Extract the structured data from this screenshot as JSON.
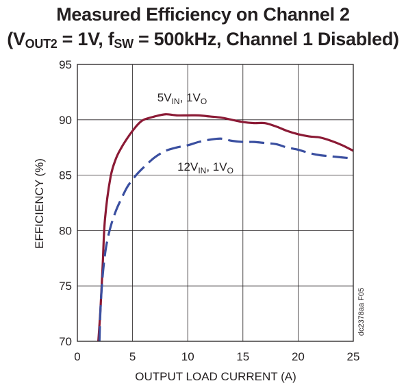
{
  "title": {
    "line1": "Measured Efficiency on Channel 2",
    "l2_open": "(V",
    "l2_vsub": "OUT2",
    "l2_mid": " = 1V, f",
    "l2_fsub": "SW",
    "l2_close": " = 500kHz, Channel 1 Disabled)"
  },
  "figure_code": "dc2378aa F05",
  "colors": {
    "series_5v": "#8b1a35",
    "series_12v": "#3a4fa0",
    "axis": "#231f20",
    "grid": "#231f20"
  },
  "chart_data": {
    "type": "line",
    "xlabel": "OUTPUT LOAD CURRENT (A)",
    "ylabel": "EFFICIENCY (%)",
    "xlim": [
      0,
      25
    ],
    "ylim": [
      70,
      95
    ],
    "xticks": [
      0,
      5,
      10,
      15,
      20,
      25
    ],
    "yticks": [
      70,
      75,
      80,
      85,
      90,
      95
    ],
    "grid": true,
    "series": [
      {
        "label_main": "5V",
        "label_sub1": "IN",
        "label_mid": ", 1V",
        "label_sub2": "O",
        "style": "solid",
        "x": [
          1.9,
          2.1,
          2.3,
          2.5,
          3.0,
          3.5,
          4.0,
          4.5,
          5.0,
          5.5,
          6.0,
          7.0,
          8.0,
          9.0,
          10.0,
          11.0,
          12.0,
          13.0,
          14.0,
          15.0,
          16.0,
          17.0,
          18.0,
          19.0,
          20.0,
          21.0,
          22.0,
          23.0,
          24.0,
          25.0
        ],
        "y": [
          70.0,
          73.0,
          77.0,
          81.0,
          84.8,
          86.5,
          87.5,
          88.3,
          89.0,
          89.6,
          90.0,
          90.3,
          90.5,
          90.4,
          90.4,
          90.4,
          90.3,
          90.2,
          90.0,
          89.8,
          89.7,
          89.7,
          89.4,
          89.0,
          88.7,
          88.5,
          88.4,
          88.1,
          87.7,
          87.2
        ]
      },
      {
        "label_main": "12V",
        "label_sub1": "IN",
        "label_mid": ", 1V",
        "label_sub2": "O",
        "style": "dashed",
        "x": [
          2.0,
          2.1,
          2.3,
          2.6,
          3.0,
          3.5,
          4.0,
          4.5,
          5.0,
          5.5,
          6.0,
          7.0,
          8.0,
          9.0,
          10.0,
          11.0,
          12.0,
          13.0,
          14.0,
          15.0,
          16.0,
          17.0,
          18.0,
          19.0,
          20.0,
          21.0,
          22.0,
          23.0,
          24.0,
          25.0
        ],
        "y": [
          70.0,
          73.0,
          76.0,
          78.5,
          80.3,
          81.8,
          82.9,
          83.9,
          84.6,
          85.2,
          85.7,
          86.6,
          87.2,
          87.5,
          87.7,
          88.0,
          88.2,
          88.3,
          88.1,
          88.0,
          88.0,
          87.9,
          87.8,
          87.5,
          87.3,
          87.0,
          86.8,
          86.7,
          86.6,
          86.5
        ]
      }
    ]
  }
}
